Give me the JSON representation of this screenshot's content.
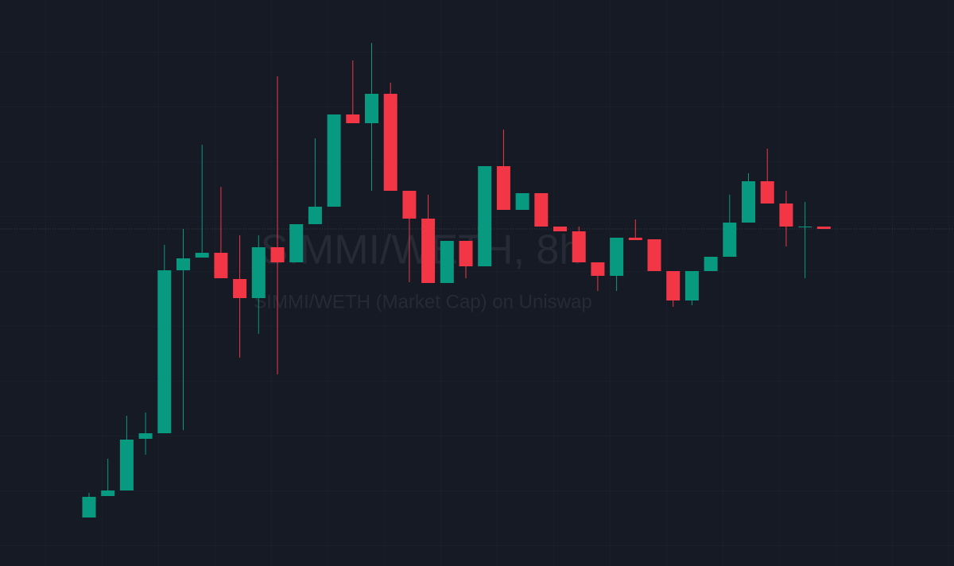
{
  "chart_data": {
    "type": "candlestick",
    "title": "SIMMI/WETH, 8h",
    "subtitle": "SIMMI/WETH (Market Cap) on Uniswap",
    "open": [
      61,
      88,
      95,
      160,
      167,
      372,
      388,
      394,
      361,
      337,
      401,
      382,
      430,
      452,
      568,
      557,
      594,
      472,
      437,
      356,
      409,
      377,
      503,
      448,
      469,
      427,
      421,
      382,
      365,
      413,
      411,
      371,
      334,
      371,
      389,
      432,
      484,
      456,
      426,
      427
    ],
    "high": [
      92,
      135,
      189,
      193,
      404,
      424,
      530,
      477,
      416,
      416,
      616,
      430,
      538,
      568,
      636,
      658,
      608,
      472,
      467,
      409,
      409,
      503,
      549,
      469,
      469,
      427,
      427,
      382,
      413,
      436,
      411,
      371,
      371,
      389,
      467,
      494,
      525,
      472,
      458,
      427
    ],
    "low": [
      61,
      88,
      95,
      140,
      167,
      171,
      388,
      362,
      262,
      292,
      241,
      382,
      430,
      452,
      557,
      472,
      472,
      357,
      356,
      356,
      362,
      377,
      448,
      448,
      427,
      421,
      382,
      346,
      346,
      410,
      371,
      326,
      328,
      371,
      389,
      432,
      456,
      402,
      362,
      424
    ],
    "close": [
      87,
      95,
      159,
      167,
      372,
      387,
      394,
      362,
      337,
      401,
      382,
      430,
      452,
      568,
      557,
      594,
      472,
      437,
      356,
      409,
      377,
      503,
      448,
      469,
      427,
      421,
      382,
      365,
      413,
      410,
      371,
      334,
      371,
      389,
      432,
      484,
      456,
      427,
      427,
      424
    ],
    "ylim": [
      0,
      712
    ],
    "up_color": "#089981",
    "down_color": "#f23645",
    "last_price_line": true
  }
}
